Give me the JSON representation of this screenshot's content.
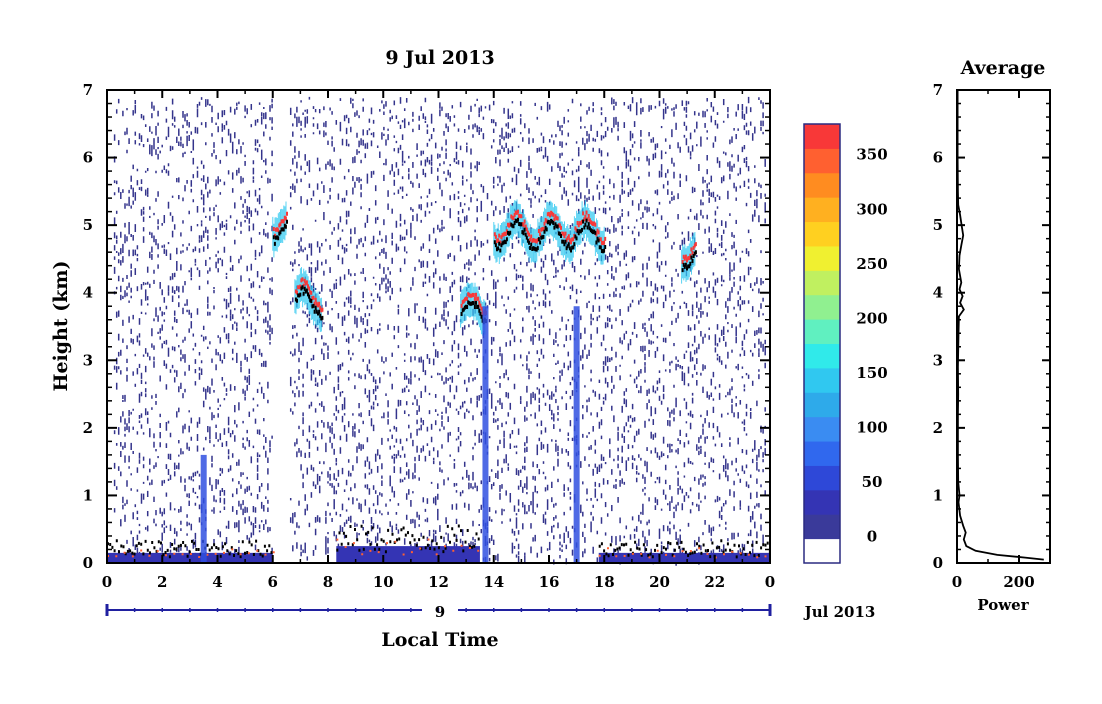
{
  "chart_data": [
    {
      "type": "heatmap",
      "title": "9 Jul 2013",
      "xlabel": "Local Time",
      "ylabel": "Height (km)",
      "xlim": [
        0,
        24
      ],
      "ylim": [
        0,
        7
      ],
      "x_ticks": [
        "0",
        "2",
        "4",
        "6",
        "8",
        "10",
        "12",
        "14",
        "16",
        "18",
        "20",
        "22",
        "0"
      ],
      "y_ticks": [
        "0",
        "1",
        "2",
        "3",
        "4",
        "5",
        "6",
        "7"
      ],
      "date_axis": {
        "day_label": "9",
        "month_label": "Jul 2013"
      },
      "colorbar": {
        "ticks": [
          "0",
          "50",
          "100",
          "150",
          "200",
          "250",
          "300",
          "350"
        ],
        "range": [
          0,
          380
        ],
        "colors": [
          "#ffffff",
          "#3a3a9a",
          "#3434b4",
          "#2e48d8",
          "#3068ee",
          "#3a8cf2",
          "#2eaaea",
          "#30c8f0",
          "#30eaea",
          "#60f0c0",
          "#90f090",
          "#c0f060",
          "#f0f030",
          "#ffd020",
          "#ffb020",
          "#ff8c20",
          "#ff6030",
          "#f83838"
        ]
      },
      "features": [
        {
          "name": "surface layer",
          "start": 0.0,
          "end": 6.0,
          "height_km": 0.15
        },
        {
          "name": "surface layer",
          "start": 8.3,
          "end": 13.5,
          "height_km": 0.25
        },
        {
          "name": "surface layer",
          "start": 17.8,
          "end": 24.0,
          "height_km": 0.15
        },
        {
          "name": "cloud layer",
          "start": 14.0,
          "end": 18.0,
          "height_km": 4.9
        },
        {
          "name": "cloud layer",
          "start": 6.8,
          "end": 7.8,
          "height_km": 3.9
        },
        {
          "name": "cloud layer",
          "start": 12.8,
          "end": 13.7,
          "height_km": 3.75
        },
        {
          "name": "cloud layer",
          "start": 6.0,
          "end": 6.5,
          "height_km": 5.0
        },
        {
          "name": "cloud layer",
          "start": 20.8,
          "end": 21.3,
          "height_km": 4.6
        }
      ]
    },
    {
      "type": "line",
      "title": "Average",
      "xlabel": "Power",
      "xlim": [
        0,
        300
      ],
      "ylim": [
        0,
        7
      ],
      "x_ticks": [
        "0",
        "200"
      ],
      "y_ticks": [
        "0",
        "1",
        "2",
        "3",
        "4",
        "5",
        "6",
        "7"
      ],
      "points": [
        [
          280,
          0.05
        ],
        [
          220,
          0.08
        ],
        [
          130,
          0.12
        ],
        [
          60,
          0.18
        ],
        [
          30,
          0.25
        ],
        [
          22,
          0.35
        ],
        [
          28,
          0.45
        ],
        [
          20,
          0.55
        ],
        [
          10,
          0.7
        ],
        [
          5,
          0.9
        ],
        [
          8,
          1.0
        ],
        [
          4,
          1.2
        ],
        [
          3,
          1.6
        ],
        [
          3,
          2.2
        ],
        [
          4,
          2.5
        ],
        [
          3,
          2.9
        ],
        [
          5,
          3.4
        ],
        [
          6,
          3.65
        ],
        [
          22,
          3.75
        ],
        [
          10,
          3.85
        ],
        [
          18,
          3.95
        ],
        [
          8,
          4.05
        ],
        [
          14,
          4.15
        ],
        [
          6,
          4.35
        ],
        [
          8,
          4.55
        ],
        [
          14,
          4.7
        ],
        [
          20,
          4.85
        ],
        [
          15,
          5.0
        ],
        [
          10,
          5.15
        ],
        [
          4,
          5.3
        ],
        [
          3,
          5.5
        ],
        [
          2,
          6.0
        ],
        [
          2,
          7.0
        ]
      ]
    }
  ]
}
